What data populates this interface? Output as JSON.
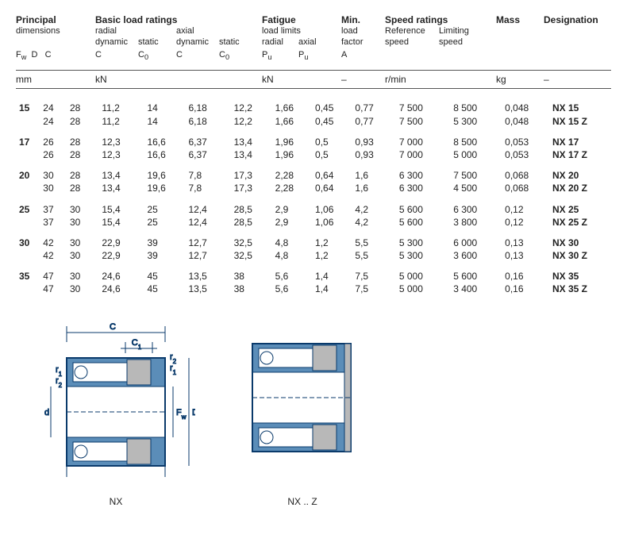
{
  "headers": {
    "principal": {
      "t": "Principal",
      "s": "dimensions",
      "sym": [
        "F",
        "w",
        "D",
        "C"
      ]
    },
    "basic": {
      "t": "Basic load ratings",
      "r1": "radial",
      "r2": "dynamic",
      "r3": "C",
      "s1": "static",
      "s2": "C",
      "s2sub": "0",
      "a1": "axial",
      "a2": "dynamic",
      "a3": "C",
      "as1": "static",
      "as2": "C",
      "as2sub": "0"
    },
    "fatigue": {
      "t": "Fatigue",
      "s": "load limits",
      "r": "radial",
      "a": "axial",
      "p": "P",
      "psub": "u"
    },
    "min": {
      "t": "Min.",
      "s": "load",
      "s2": "factor",
      "sym": "A"
    },
    "speed": {
      "t": "Speed ratings",
      "r": "Reference",
      "r2": "speed",
      "l": "Limiting",
      "l2": "speed"
    },
    "mass": {
      "t": "Mass"
    },
    "des": {
      "t": "Designation"
    }
  },
  "units": {
    "mm": "mm",
    "kn": "kN",
    "kn2": "kN",
    "dash": "–",
    "rmin": "r/min",
    "kg": "kg",
    "dash2": "–"
  },
  "rows": [
    {
      "fw": "15",
      "d": "24",
      "c": "28",
      "rd": "11,2",
      "rs": "14",
      "ad": "6,18",
      "as": "12,2",
      "pr": "1,66",
      "pa": "0,45",
      "a": "0,77",
      "sr": "7 500",
      "sl": "8 500",
      "m": "0,048",
      "des": "NX 15"
    },
    {
      "fw": "",
      "d": "24",
      "c": "28",
      "rd": "11,2",
      "rs": "14",
      "ad": "6,18",
      "as": "12,2",
      "pr": "1,66",
      "pa": "0,45",
      "a": "0,77",
      "sr": "7 500",
      "sl": "5 300",
      "m": "0,048",
      "des": "NX 15 Z"
    },
    {
      "fw": "17",
      "d": "26",
      "c": "28",
      "rd": "12,3",
      "rs": "16,6",
      "ad": "6,37",
      "as": "13,4",
      "pr": "1,96",
      "pa": "0,5",
      "a": "0,93",
      "sr": "7 000",
      "sl": "8 500",
      "m": "0,053",
      "des": "NX 17"
    },
    {
      "fw": "",
      "d": "26",
      "c": "28",
      "rd": "12,3",
      "rs": "16,6",
      "ad": "6,37",
      "as": "13,4",
      "pr": "1,96",
      "pa": "0,5",
      "a": "0,93",
      "sr": "7 000",
      "sl": "5 000",
      "m": "0,053",
      "des": "NX 17 Z"
    },
    {
      "fw": "20",
      "d": "30",
      "c": "28",
      "rd": "13,4",
      "rs": "19,6",
      "ad": "7,8",
      "as": "17,3",
      "pr": "2,28",
      "pa": "0,64",
      "a": "1,6",
      "sr": "6 300",
      "sl": "7 500",
      "m": "0,068",
      "des": "NX 20"
    },
    {
      "fw": "",
      "d": "30",
      "c": "28",
      "rd": "13,4",
      "rs": "19,6",
      "ad": "7,8",
      "as": "17,3",
      "pr": "2,28",
      "pa": "0,64",
      "a": "1,6",
      "sr": "6 300",
      "sl": "4 500",
      "m": "0,068",
      "des": "NX 20 Z"
    },
    {
      "fw": "25",
      "d": "37",
      "c": "30",
      "rd": "15,4",
      "rs": "25",
      "ad": "12,4",
      "as": "28,5",
      "pr": "2,9",
      "pa": "1,06",
      "a": "4,2",
      "sr": "5 600",
      "sl": "6 300",
      "m": "0,12",
      "des": "NX 25"
    },
    {
      "fw": "",
      "d": "37",
      "c": "30",
      "rd": "15,4",
      "rs": "25",
      "ad": "12,4",
      "as": "28,5",
      "pr": "2,9",
      "pa": "1,06",
      "a": "4,2",
      "sr": "5 600",
      "sl": "3 800",
      "m": "0,12",
      "des": "NX 25 Z"
    },
    {
      "fw": "30",
      "d": "42",
      "c": "30",
      "rd": "22,9",
      "rs": "39",
      "ad": "12,7",
      "as": "32,5",
      "pr": "4,8",
      "pa": "1,2",
      "a": "5,5",
      "sr": "5 300",
      "sl": "6 000",
      "m": "0,13",
      "des": "NX 30"
    },
    {
      "fw": "",
      "d": "42",
      "c": "30",
      "rd": "22,9",
      "rs": "39",
      "ad": "12,7",
      "as": "32,5",
      "pr": "4,8",
      "pa": "1,2",
      "a": "5,5",
      "sr": "5 300",
      "sl": "3 600",
      "m": "0,13",
      "des": "NX 30 Z"
    },
    {
      "fw": "35",
      "d": "47",
      "c": "30",
      "rd": "24,6",
      "rs": "45",
      "ad": "13,5",
      "as": "38",
      "pr": "5,6",
      "pa": "1,4",
      "a": "7,5",
      "sr": "5 000",
      "sl": "5 600",
      "m": "0,16",
      "des": "NX 35"
    },
    {
      "fw": "",
      "d": "47",
      "c": "30",
      "rd": "24,6",
      "rs": "45",
      "ad": "13,5",
      "as": "38",
      "pr": "5,6",
      "pa": "1,4",
      "a": "7,5",
      "sr": "5 000",
      "sl": "3 400",
      "m": "0,16",
      "des": "NX 35 Z"
    }
  ],
  "diag": {
    "nx": "NX",
    "nxz": "NX .. Z",
    "c": "C",
    "c1": "C",
    "c1sub": "1",
    "r1": "r",
    "r1sub": "1",
    "r2": "r",
    "r2sub": "2",
    "d": "d",
    "fw": "F",
    "fwsub": "w",
    "D": "D"
  },
  "colors": {
    "blue": "#5b8db8",
    "grey": "#b8b8b8",
    "line": "#0a3a6b"
  }
}
